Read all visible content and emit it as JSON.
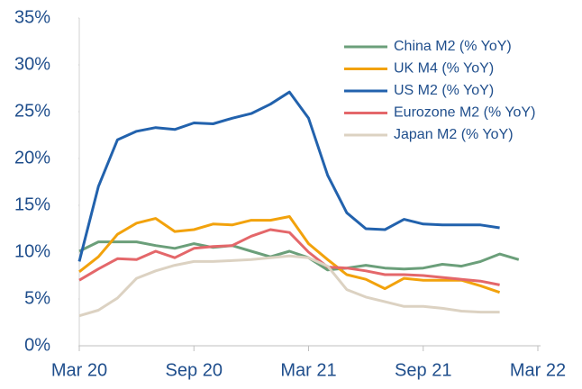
{
  "chart_data": {
    "type": "line",
    "categories": [
      "Mar 20",
      null,
      null,
      null,
      null,
      null,
      "Sep 20",
      null,
      null,
      null,
      null,
      null,
      "Mar 21",
      null,
      null,
      null,
      null,
      null,
      "Sep 21",
      null,
      null,
      null,
      null,
      null,
      "Mar 22"
    ],
    "series": [
      {
        "name": "China M2 (% YoY)",
        "color": "#6b9f7a",
        "values": [
          10.1,
          11.1,
          11.1,
          11.1,
          10.7,
          10.4,
          10.9,
          10.5,
          10.7,
          10.1,
          9.5,
          10.1,
          9.4,
          8.1,
          8.3,
          8.6,
          8.3,
          8.2,
          8.3,
          8.7,
          8.5,
          9.0,
          9.8,
          9.2,
          null
        ]
      },
      {
        "name": "UK M4 (% YoY)",
        "color": "#f2a20c",
        "values": [
          7.9,
          9.5,
          11.9,
          13.1,
          13.6,
          12.2,
          12.4,
          13.0,
          12.9,
          13.4,
          13.4,
          13.8,
          10.9,
          9.2,
          7.6,
          7.1,
          6.1,
          7.2,
          7.0,
          7.0,
          7.0,
          6.4,
          5.7,
          null,
          null
        ]
      },
      {
        "name": "US M2 (% YoY)",
        "color": "#2262ad",
        "values": [
          9.0,
          17.0,
          22.0,
          22.9,
          23.3,
          23.1,
          23.8,
          23.7,
          24.3,
          24.8,
          25.8,
          27.1,
          24.3,
          18.2,
          14.2,
          12.5,
          12.4,
          13.5,
          13.0,
          12.9,
          12.9,
          12.9,
          12.6,
          null,
          null
        ]
      },
      {
        "name": "Eurozone M2 (% YoY)",
        "color": "#e4676a",
        "values": [
          7.0,
          8.2,
          9.3,
          9.2,
          10.1,
          9.4,
          10.4,
          10.6,
          10.7,
          11.7,
          12.4,
          12.1,
          10.0,
          8.4,
          8.3,
          8.0,
          7.6,
          7.6,
          7.5,
          7.3,
          7.1,
          6.9,
          6.5,
          null,
          null
        ]
      },
      {
        "name": "Japan M2 (% YoY)",
        "color": "#dcd2c2",
        "values": [
          3.2,
          3.8,
          5.1,
          7.2,
          8.0,
          8.6,
          9.0,
          9.0,
          9.1,
          9.2,
          9.4,
          9.6,
          9.4,
          8.5,
          6.0,
          5.2,
          4.7,
          4.2,
          4.2,
          4.0,
          3.7,
          3.6,
          3.6,
          null,
          null
        ]
      }
    ],
    "ylim": [
      0,
      35
    ],
    "yticks": [
      {
        "value": 0,
        "label": "0%"
      },
      {
        "value": 5,
        "label": "5%"
      },
      {
        "value": 10,
        "label": "10%"
      },
      {
        "value": 15,
        "label": "15%"
      },
      {
        "value": 20,
        "label": "20%"
      },
      {
        "value": 25,
        "label": "25%"
      },
      {
        "value": 30,
        "label": "30%"
      },
      {
        "value": 35,
        "label": "35%"
      }
    ],
    "grid": false,
    "legend": "upper right"
  }
}
